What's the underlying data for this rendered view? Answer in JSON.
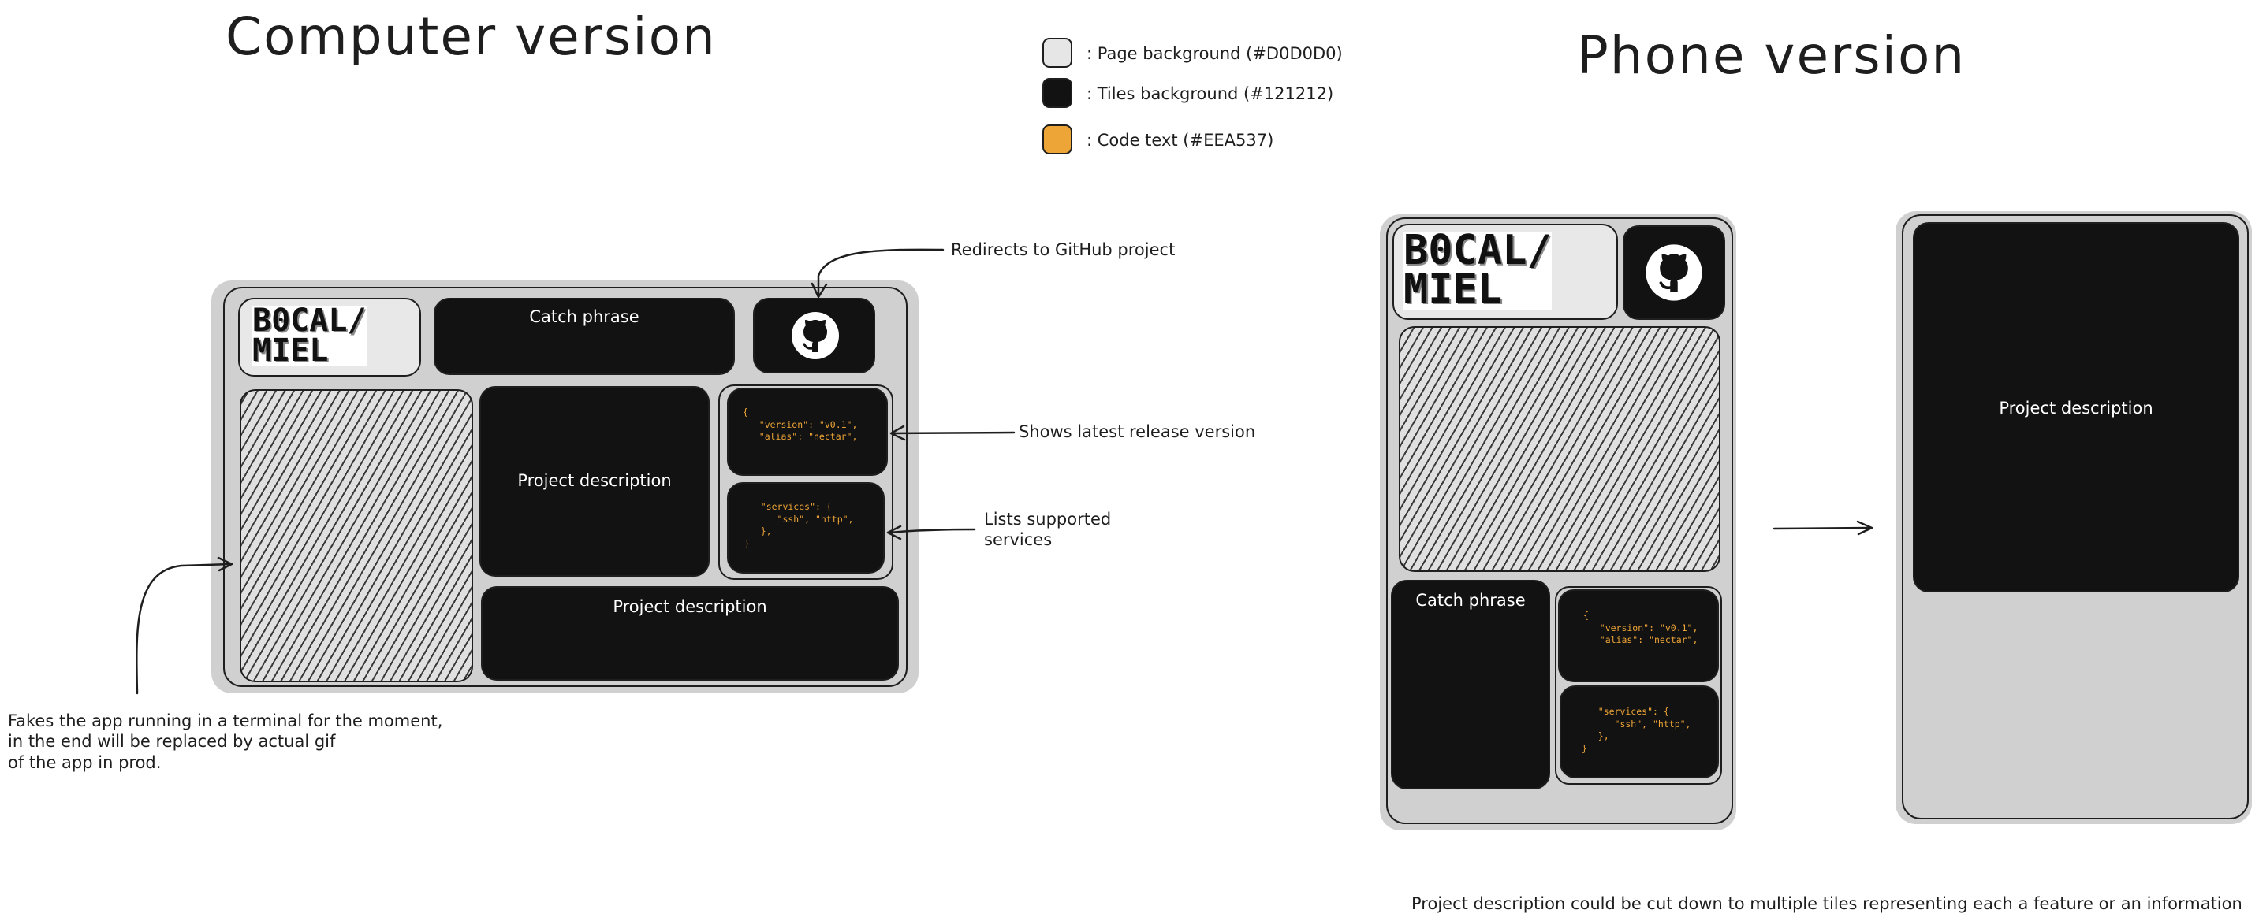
{
  "headings": {
    "computer": "Computer version",
    "phone": "Phone version"
  },
  "legend": [
    {
      "label": ": Page background (#D0D0D0)",
      "color": "#D0D0D0"
    },
    {
      "label": ": Tiles background (#121212)",
      "color": "#121212"
    },
    {
      "label": ": Code text (#EEA537)",
      "color": "#EEA537"
    }
  ],
  "logo_text": "B0CAL/\nMIEL",
  "icons": {
    "github": "github-icon"
  },
  "computer": {
    "catch_phrase": "Catch phrase",
    "project_description_main": "Project description",
    "project_description_bottom": "Project description",
    "code_version": "{\n   \"version\": \"v0.1\",\n   \"alias\": \"nectar\",",
    "code_services": "   \"services\": {\n      \"ssh\", \"http\",\n   },\n}"
  },
  "phone": {
    "catch_phrase": "Catch phrase",
    "project_description": "Project description",
    "code_version": "{\n   \"version\": \"v0.1\",\n   \"alias\": \"nectar\",",
    "code_services": "   \"services\": {\n      \"ssh\", \"http\",\n   },\n}"
  },
  "annotations": {
    "github": "Redirects to GitHub project",
    "version": "Shows latest release version",
    "services": "Lists supported\nservices",
    "terminal": "Fakes the app running in a terminal for the moment,\nin the end will be replaced by actual gif\nof the app in prod.",
    "phone_note": "Project description could be cut down to multiple tiles representing each a feature or an information"
  }
}
